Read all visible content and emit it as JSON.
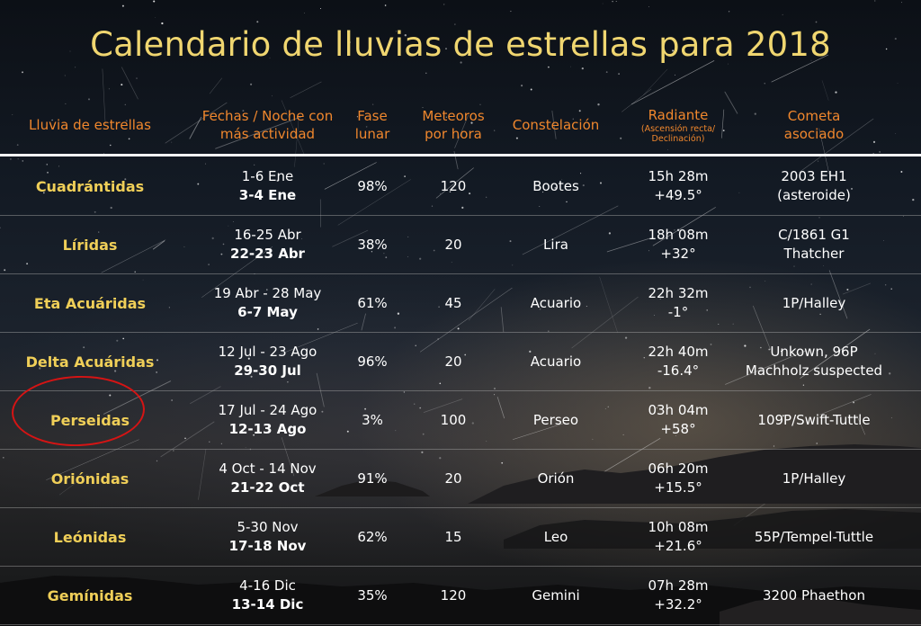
{
  "title": "Calendario de lluvias de estrellas para 2018",
  "headers": {
    "shower": "Lluvia de estrellas",
    "dates_line1": "Fechas / Noche con",
    "dates_line2": "más actividad",
    "moon_line1": "Fase",
    "moon_line2": "lunar",
    "meteors_line1": "Meteoros",
    "meteors_line2": "por hora",
    "constellation": "Constelación",
    "radiant": "Radiante",
    "radiant_sub1": "(Ascensión recta/",
    "radiant_sub2": "Declinación)",
    "comet_line1": "Cometa",
    "comet_line2": "asociado"
  },
  "rows": [
    {
      "name": "Cuadrántidas",
      "dates": "1-6 Ene",
      "peak": "3-4 Ene",
      "moon": "98%",
      "meteors": "120",
      "constellation": "Bootes",
      "ra": "15h 28m",
      "dec": "+49.5°",
      "comet1": "2003 EH1",
      "comet2": "(asteroide)"
    },
    {
      "name": "Líridas",
      "dates": "16-25 Abr",
      "peak": "22-23 Abr",
      "moon": "38%",
      "meteors": "20",
      "constellation": "Lira",
      "ra": "18h 08m",
      "dec": "+32°",
      "comet1": "C/1861 G1",
      "comet2": "Thatcher"
    },
    {
      "name": "Eta Acuáridas",
      "dates": "19 Abr - 28 May",
      "peak": "6-7 May",
      "moon": "61%",
      "meteors": "45",
      "constellation": "Acuario",
      "ra": "22h 32m",
      "dec": "-1°",
      "comet1": "1P/Halley",
      "comet2": ""
    },
    {
      "name": "Delta Acuáridas",
      "dates": "12 Jul - 23 Ago",
      "peak": "29-30 Jul",
      "moon": "96%",
      "meteors": "20",
      "constellation": "Acuario",
      "ra": "22h 40m",
      "dec": "-16.4°",
      "comet1": "Unkown,  96P",
      "comet2": "Machholz suspected"
    },
    {
      "name": "Perseidas",
      "dates": "17 Jul - 24 Ago",
      "peak": "12-13 Ago",
      "moon": "3%",
      "meteors": "100",
      "constellation": "Perseo",
      "ra": "03h 04m",
      "dec": "+58°",
      "comet1": "109P/Swift-Tuttle",
      "comet2": ""
    },
    {
      "name": "Oriónidas",
      "dates": "4 Oct - 14 Nov",
      "peak": "21-22 Oct",
      "moon": "91%",
      "meteors": "20",
      "constellation": "Orión",
      "ra": "06h 20m",
      "dec": "+15.5°",
      "comet1": "1P/Halley",
      "comet2": ""
    },
    {
      "name": "Leónidas",
      "dates": "5-30 Nov",
      "peak": "17-18 Nov",
      "moon": "62%",
      "meteors": "15",
      "constellation": "Leo",
      "ra": "10h 08m",
      "dec": "+21.6°",
      "comet1": "55P/Tempel-Tuttle",
      "comet2": ""
    },
    {
      "name": "Gemínidas",
      "dates": "4-16 Dic",
      "peak": "13-14 Dic",
      "moon": "35%",
      "meteors": "120",
      "constellation": "Gemini",
      "ra": "07h 28m",
      "dec": "+32.2°",
      "comet1": "3200 Phaethon",
      "comet2": ""
    }
  ],
  "highlight": {
    "row": "Perseidas",
    "color": "#d51414"
  },
  "colors": {
    "title": "#f0d670",
    "header": "#f0872d",
    "name": "#f0cf58",
    "text": "#ffffff"
  }
}
